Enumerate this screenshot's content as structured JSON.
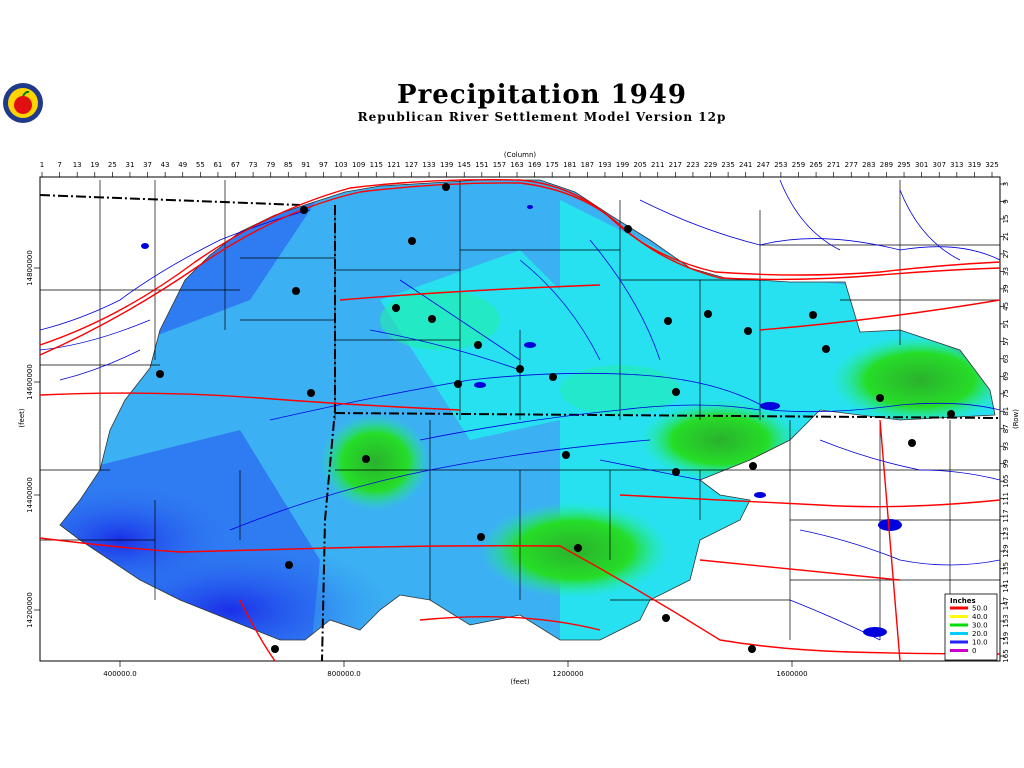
{
  "header": {
    "title": "Precipitation 1949",
    "subtitle": "Republican River Settlement Model Version 12p",
    "logo_icon": "apple-logo-icon"
  },
  "axes": {
    "column_label": "(Column)",
    "row_label": "(Row)",
    "y_label": "(feet)",
    "x_label": "(feet)",
    "column_ticks": [
      "1",
      "7",
      "13",
      "19",
      "25",
      "31",
      "37",
      "43",
      "49",
      "55",
      "61",
      "67",
      "73",
      "79",
      "85",
      "91",
      "97",
      "103",
      "109",
      "115",
      "121",
      "127",
      "133",
      "139",
      "145",
      "151",
      "157",
      "163",
      "169",
      "175",
      "181",
      "187",
      "193",
      "199",
      "205",
      "211",
      "217",
      "223",
      "229",
      "235",
      "241",
      "247",
      "253",
      "259",
      "265",
      "271",
      "277",
      "283",
      "289",
      "295",
      "301",
      "307",
      "313",
      "319",
      "325"
    ],
    "row_ticks": [
      "3",
      "9",
      "15",
      "21",
      "27",
      "33",
      "39",
      "45",
      "51",
      "57",
      "63",
      "69",
      "75",
      "81",
      "87",
      "93",
      "99",
      "105",
      "111",
      "117",
      "123",
      "129",
      "135",
      "141",
      "147",
      "153",
      "159",
      "165"
    ],
    "x_ticks": [
      "400000.0",
      "800000.0",
      "1200000",
      "1600000"
    ],
    "y_ticks": [
      "14800000",
      "14600000",
      "14400000",
      "14200000"
    ]
  },
  "legend": {
    "title": "Inches",
    "items": [
      {
        "label": "50.0",
        "color": "#ff0000"
      },
      {
        "label": "40.0",
        "color": "#ffff00"
      },
      {
        "label": "30.0",
        "color": "#00dd00"
      },
      {
        "label": "20.0",
        "color": "#00ccff"
      },
      {
        "label": "10.0",
        "color": "#2222ff"
      },
      {
        "label": "0",
        "color": "#cc00cc"
      }
    ]
  },
  "colors": {
    "deep_blue": "#1a2ee8",
    "mid_blue": "#2f7cf2",
    "light_blue": "#3bb0f2",
    "cyan": "#27e1f0",
    "aqua_green": "#22f0a8",
    "green": "#26dd28",
    "dark_green": "#2ab12e",
    "roads": "#ff0000",
    "streams": "#0000dd",
    "borders": "#000000"
  }
}
